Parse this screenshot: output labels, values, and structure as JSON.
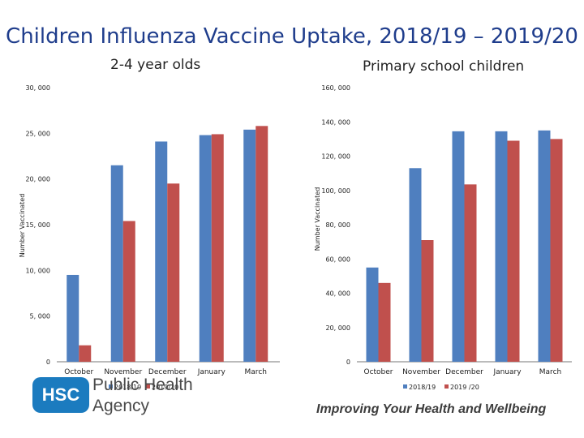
{
  "page": {
    "title": "Children Influenza Vaccine Uptake, 2018/19 – 2019/20"
  },
  "chart_data": [
    {
      "type": "bar",
      "title": "2-4 year olds",
      "xlabel": "",
      "ylabel": "Number Vaccinated",
      "categories": [
        "October",
        "November",
        "December",
        "January",
        "March"
      ],
      "series": [
        {
          "name": "2018/19",
          "values": [
            9500,
            21500,
            24100,
            24800,
            25400
          ],
          "color": "#4f7fbf"
        },
        {
          "name": "2019/20",
          "values": [
            1800,
            15400,
            19500,
            24900,
            25800
          ],
          "color": "#c0504d"
        }
      ],
      "ylim": [
        0,
        30000
      ],
      "yticks": [
        0,
        5000,
        10000,
        15000,
        20000,
        25000,
        30000
      ],
      "ytick_labels": [
        "0",
        "5, 000",
        "10, 000",
        "15, 000",
        "20, 000",
        "25, 000",
        "30, 000"
      ],
      "grid": false,
      "legend": "bottom"
    },
    {
      "type": "bar",
      "title": "Primary school children",
      "xlabel": "",
      "ylabel": "Number Vaccinated",
      "categories": [
        "October",
        "November",
        "December",
        "January",
        "March"
      ],
      "series": [
        {
          "name": "2018/19",
          "values": [
            55000,
            113000,
            134500,
            134500,
            135000
          ],
          "color": "#4f7fbf"
        },
        {
          "name": "2019/20",
          "values": [
            46000,
            71000,
            103500,
            129000,
            130000
          ],
          "color": "#c0504d"
        }
      ],
      "ylim": [
        0,
        160000
      ],
      "yticks": [
        0,
        20000,
        40000,
        60000,
        80000,
        100000,
        120000,
        140000,
        160000
      ],
      "ytick_labels": [
        "0",
        "20, 000",
        "40, 000",
        "60, 000",
        "80, 000",
        "100, 000",
        "120, 000",
        "140, 000",
        "160, 000"
      ],
      "grid": false,
      "legend": "bottom"
    }
  ],
  "legend_labels": {
    "left": [
      "2018/19",
      "2019/20"
    ],
    "right": [
      "2018/19",
      "2019 /20"
    ]
  },
  "branding": {
    "logo_abbr": "HSC",
    "org_line1": "Public Health",
    "org_line2": "Agency",
    "tagline": "Improving Your Health and Wellbeing"
  }
}
